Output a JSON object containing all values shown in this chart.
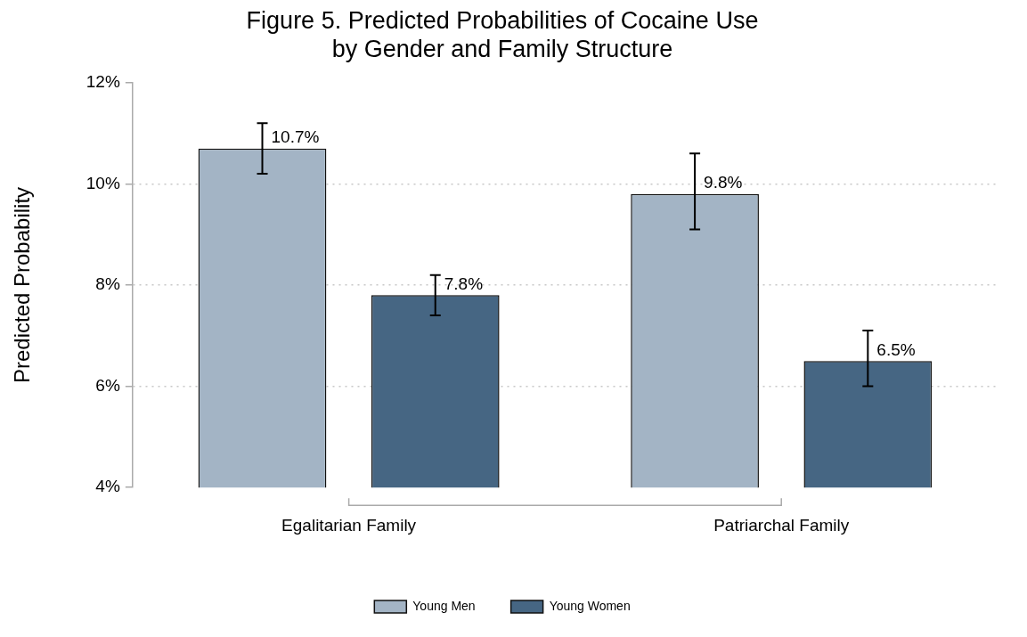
{
  "chart_data": {
    "type": "bar",
    "title": "Figure 5. Predicted Probabilities of Cocaine Use\nby Gender and Family Structure",
    "ylabel": "Predicted Probability",
    "categories": [
      "Egalitarian Family",
      "Patriarchal Family"
    ],
    "series": [
      {
        "name": "Young Men",
        "color": "#a3b4c5",
        "values": [
          10.7,
          9.8
        ],
        "errors": [
          [
            10.2,
            11.2
          ],
          [
            9.1,
            10.6
          ]
        ],
        "value_labels": [
          "10.7%",
          "9.8%"
        ]
      },
      {
        "name": "Young Women",
        "color": "#466683",
        "values": [
          7.8,
          6.5
        ],
        "errors": [
          [
            7.4,
            8.2
          ],
          [
            6.0,
            7.1
          ]
        ],
        "value_labels": [
          "7.8%",
          "6.5%"
        ]
      }
    ],
    "ylim": [
      4,
      12
    ],
    "yticks": [
      {
        "value": 4,
        "label": "4%"
      },
      {
        "value": 6,
        "label": "6%"
      },
      {
        "value": 8,
        "label": "8%"
      },
      {
        "value": 10,
        "label": "10%"
      },
      {
        "value": 12,
        "label": "12%"
      }
    ],
    "grid": "y",
    "legend": "bottom"
  }
}
